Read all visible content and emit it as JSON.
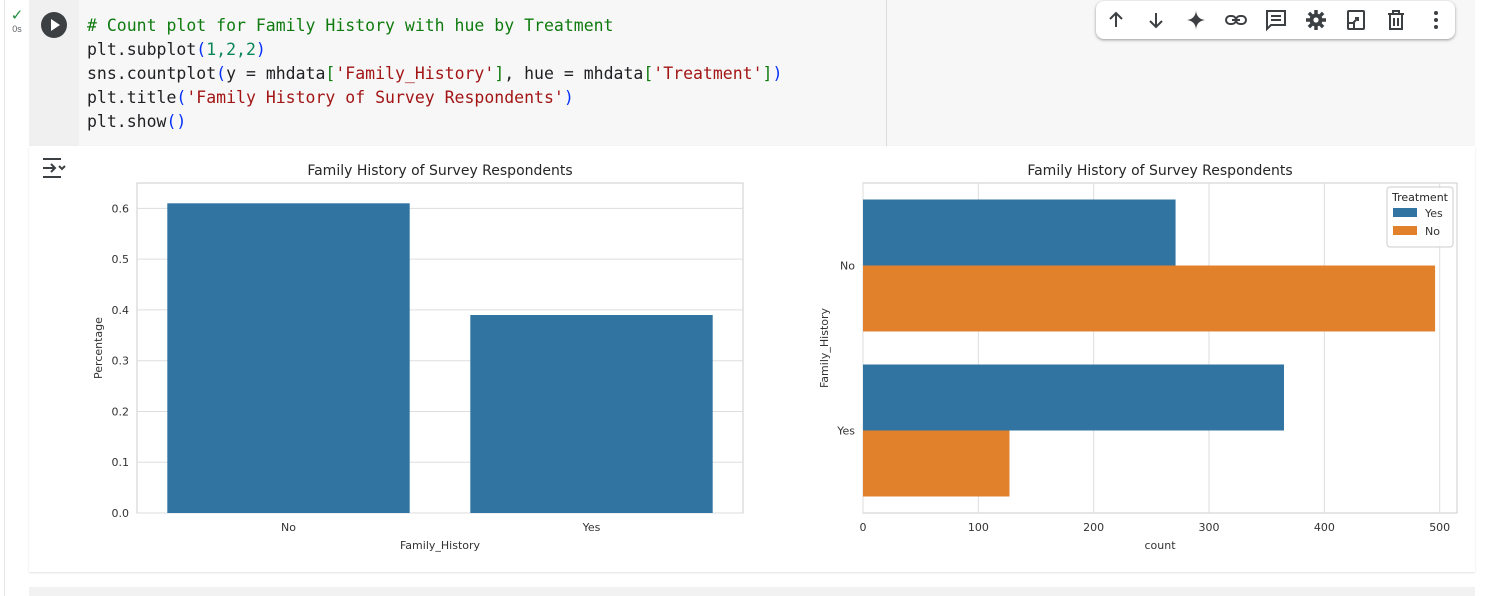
{
  "cell": {
    "status_check": "✓",
    "exec_time": "0s"
  },
  "code": {
    "line1": "# Count plot for Family History with hue by Treatment",
    "line2_a": "plt.subplot",
    "line2_b": "(",
    "line2_c": "1,2,2",
    "line2_d": ")",
    "line3_a": "sns.countplot",
    "line3_b": "(",
    "line3_c": "y = mhdata",
    "line3_d": "[",
    "line3_e": "'Family_History'",
    "line3_f": "]",
    "line3_g": ", hue = mhdata",
    "line3_h": "[",
    "line3_i": "'Treatment'",
    "line3_j": "]",
    "line3_k": ")",
    "line4_a": "plt.title",
    "line4_b": "(",
    "line4_c": "'Family History of Survey Respondents'",
    "line4_d": ")",
    "line5_a": "plt.show",
    "line5_b": "()"
  },
  "toolbar": {
    "icons": [
      "arrow-up-icon",
      "arrow-down-icon",
      "sparkle-icon",
      "link-icon",
      "comment-icon",
      "gear-icon",
      "mirror-cell-icon",
      "trash-icon",
      "more-vert-icon"
    ]
  },
  "chart_data": [
    {
      "type": "bar",
      "title": "Family History of Survey Respondents",
      "xlabel": "Family_History",
      "ylabel": "Percentage",
      "categories": [
        "No",
        "Yes"
      ],
      "values": [
        0.61,
        0.39
      ],
      "ylim": [
        0,
        0.65
      ],
      "yticks": [
        0.0,
        0.1,
        0.2,
        0.3,
        0.4,
        0.5,
        0.6
      ],
      "ytick_labels": [
        "0.0",
        "0.1",
        "0.2",
        "0.3",
        "0.4",
        "0.5",
        "0.6"
      ],
      "color": "#3274a1",
      "grid": true
    },
    {
      "type": "bar",
      "orientation": "horizontal",
      "title": "Family History of Survey Respondents",
      "xlabel": "count",
      "ylabel": "Family_History",
      "categories": [
        "No",
        "Yes"
      ],
      "series": [
        {
          "name": "Yes",
          "values": [
            271,
            365
          ],
          "color": "#3274a1"
        },
        {
          "name": "No",
          "values": [
            496,
            127
          ],
          "color": "#e1812c"
        }
      ],
      "xlim": [
        0,
        515
      ],
      "xticks": [
        0,
        100,
        200,
        300,
        400,
        500
      ],
      "xtick_labels": [
        "0",
        "100",
        "200",
        "300",
        "400",
        "500"
      ],
      "legend_title": "Treatment",
      "legend_position": "top-right",
      "grid": true
    }
  ]
}
